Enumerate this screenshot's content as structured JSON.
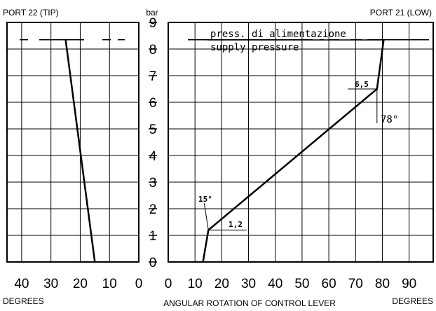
{
  "chart_data": {
    "type": "line",
    "title": "ANGULAR ROTATION OF CONTROL LEVER",
    "unit_label": "bar",
    "left_panel_title": "PORT 22 (TIP)",
    "right_panel_title": "PORT 21 (LOW)",
    "left_xlabel": "DEGREES",
    "right_xlabel": "DEGREES",
    "y_ticks": [
      "0",
      "1",
      "2",
      "3",
      "4",
      "5",
      "6",
      "7",
      "8",
      "9"
    ],
    "ylim": [
      0,
      9
    ],
    "left_ticks": [
      "40",
      "30",
      "20",
      "10",
      "0"
    ],
    "right_ticks": [
      "0",
      "10",
      "20",
      "30",
      "40",
      "50",
      "60",
      "70",
      "80",
      "90"
    ],
    "left_xlim": [
      45,
      0
    ],
    "right_xlim": [
      0,
      99
    ],
    "supply_pressure_label_it": "press. di alimentazione",
    "supply_pressure_label_en": "supply pressure",
    "supply_pressure": 8.35,
    "annotations": {
      "start_angle": "15°",
      "start_pressure": "1,2",
      "end_pressure": "6,5",
      "end_angle": "78°"
    },
    "series": [
      {
        "panel": "left",
        "x": [
          25,
          15
        ],
        "y": [
          8.35,
          0
        ]
      },
      {
        "panel": "right",
        "x": [
          13,
          15,
          78,
          80.5
        ],
        "y": [
          0,
          1.2,
          6.5,
          8.35
        ]
      }
    ],
    "grid": true
  }
}
